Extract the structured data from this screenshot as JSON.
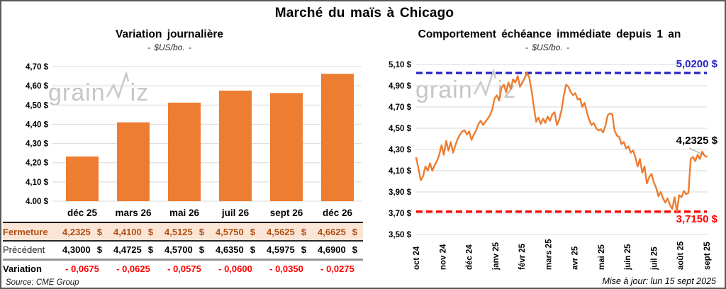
{
  "header": {
    "title": "Marché du maïs à Chicago"
  },
  "watermark": {
    "prefix": "grain",
    "suffix": "iz"
  },
  "left_chart": {
    "title": "Variation journalière",
    "subtitle": "- $US/bo. -",
    "source": "Source: CME Group",
    "table": {
      "currency": "$",
      "columns": [
        "déc 25",
        "mars 26",
        "mai 26",
        "juil 26",
        "sept 26",
        "déc 26"
      ],
      "rows": [
        {
          "label": "Fermeture",
          "style": "fermeture",
          "with_currency": true,
          "values": [
            "4,2325",
            "4,4100",
            "4,5125",
            "4,5750",
            "4,5625",
            "4,6625"
          ]
        },
        {
          "label": "Précédent",
          "style": "precedent",
          "with_currency": true,
          "values": [
            "4,3000",
            "4,4725",
            "4,5700",
            "4,6350",
            "4,5975",
            "4,6900"
          ]
        },
        {
          "label": "Variation",
          "style": "variation",
          "with_currency": false,
          "values": [
            "- 0,0675",
            "- 0,0625",
            "- 0,0575",
            "- 0,0600",
            "- 0,0350",
            "- 0,0275"
          ]
        }
      ]
    }
  },
  "right_chart": {
    "title": "Comportement échéance immédiate depuis 1 an",
    "subtitle": "- $US/bo. -",
    "updated": "Mise à jour: lun 15 sept 2025"
  },
  "colors": {
    "bar": "#ED7D31",
    "line": "#ED7D31",
    "high_line": "#2424C8",
    "low_line": "#FF0000",
    "grid": "#D9D9D9",
    "fermeture_bg": "#FBE5D6",
    "fermeture_text": "#AF5014",
    "variation_text": "#FF0000",
    "watermark": "#C6C6C6",
    "leader": "#A6A6A6"
  },
  "chart_data": [
    {
      "type": "bar",
      "title": "Variation journalière",
      "xlabel": "",
      "ylabel": "$US/bo.",
      "categories": [
        "déc 25",
        "mars 26",
        "mai 26",
        "juil 26",
        "sept 26",
        "déc 26"
      ],
      "values": [
        4.2325,
        4.41,
        4.5125,
        4.575,
        4.5625,
        4.6625
      ],
      "ylim": [
        4.0,
        4.7
      ],
      "ytick_step": 0.1,
      "grid": true,
      "legend": "none"
    },
    {
      "type": "line",
      "title": "Comportement échéance immédiate depuis 1 an",
      "xlabel": "",
      "ylabel": "$US/bo.",
      "x_labels": [
        "oct 24",
        "nov 24",
        "déc 24",
        "janv 25",
        "févr 25",
        "mars 25",
        "avr 25",
        "mai 25",
        "juin 25",
        "juil 25",
        "août 25",
        "sept 25"
      ],
      "ylim": [
        3.5,
        5.1
      ],
      "ytick_step": 0.2,
      "grid": true,
      "legend": "none",
      "last_value": 4.2325,
      "last_label": "4,2325 $",
      "reference_lines": [
        {
          "value": 5.02,
          "label": "5,0200 $",
          "color": "#2424C8",
          "style": "dashed"
        },
        {
          "value": 3.715,
          "label": "3,7150 $",
          "color": "#FF0000",
          "style": "dashed"
        }
      ],
      "values": [
        4.22,
        4.12,
        4.01,
        4.05,
        4.14,
        4.1,
        4.17,
        4.1,
        4.15,
        4.19,
        4.25,
        4.34,
        4.25,
        4.38,
        4.29,
        4.37,
        4.27,
        4.34,
        4.4,
        4.44,
        4.47,
        4.48,
        4.44,
        4.47,
        4.39,
        4.44,
        4.48,
        4.54,
        4.57,
        4.53,
        4.56,
        4.59,
        4.62,
        4.68,
        4.78,
        4.81,
        4.76,
        4.88,
        4.91,
        4.84,
        4.93,
        4.87,
        4.96,
        4.93,
        4.99,
        4.89,
        4.93,
        4.97,
        5.02,
        4.98,
        4.86,
        4.7,
        4.56,
        4.6,
        4.54,
        4.59,
        4.55,
        4.61,
        4.57,
        4.63,
        4.65,
        4.53,
        4.58,
        4.67,
        4.81,
        4.91,
        4.89,
        4.84,
        4.81,
        4.83,
        4.77,
        4.78,
        4.7,
        4.74,
        4.65,
        4.58,
        4.53,
        4.55,
        4.5,
        4.48,
        4.49,
        4.46,
        4.52,
        4.62,
        4.64,
        4.63,
        4.48,
        4.43,
        4.42,
        4.35,
        4.37,
        4.31,
        4.33,
        4.27,
        4.29,
        4.23,
        4.14,
        4.21,
        4.08,
        4.14,
        3.98,
        4.04,
        4.07,
        3.99,
        3.94,
        3.86,
        3.9,
        3.84,
        3.8,
        3.84,
        3.78,
        3.74,
        3.85,
        3.72,
        3.87,
        3.85,
        3.91,
        3.88,
        3.89,
        4.21,
        4.23,
        4.19,
        4.25,
        4.21,
        4.28,
        4.24,
        4.2325
      ]
    }
  ]
}
